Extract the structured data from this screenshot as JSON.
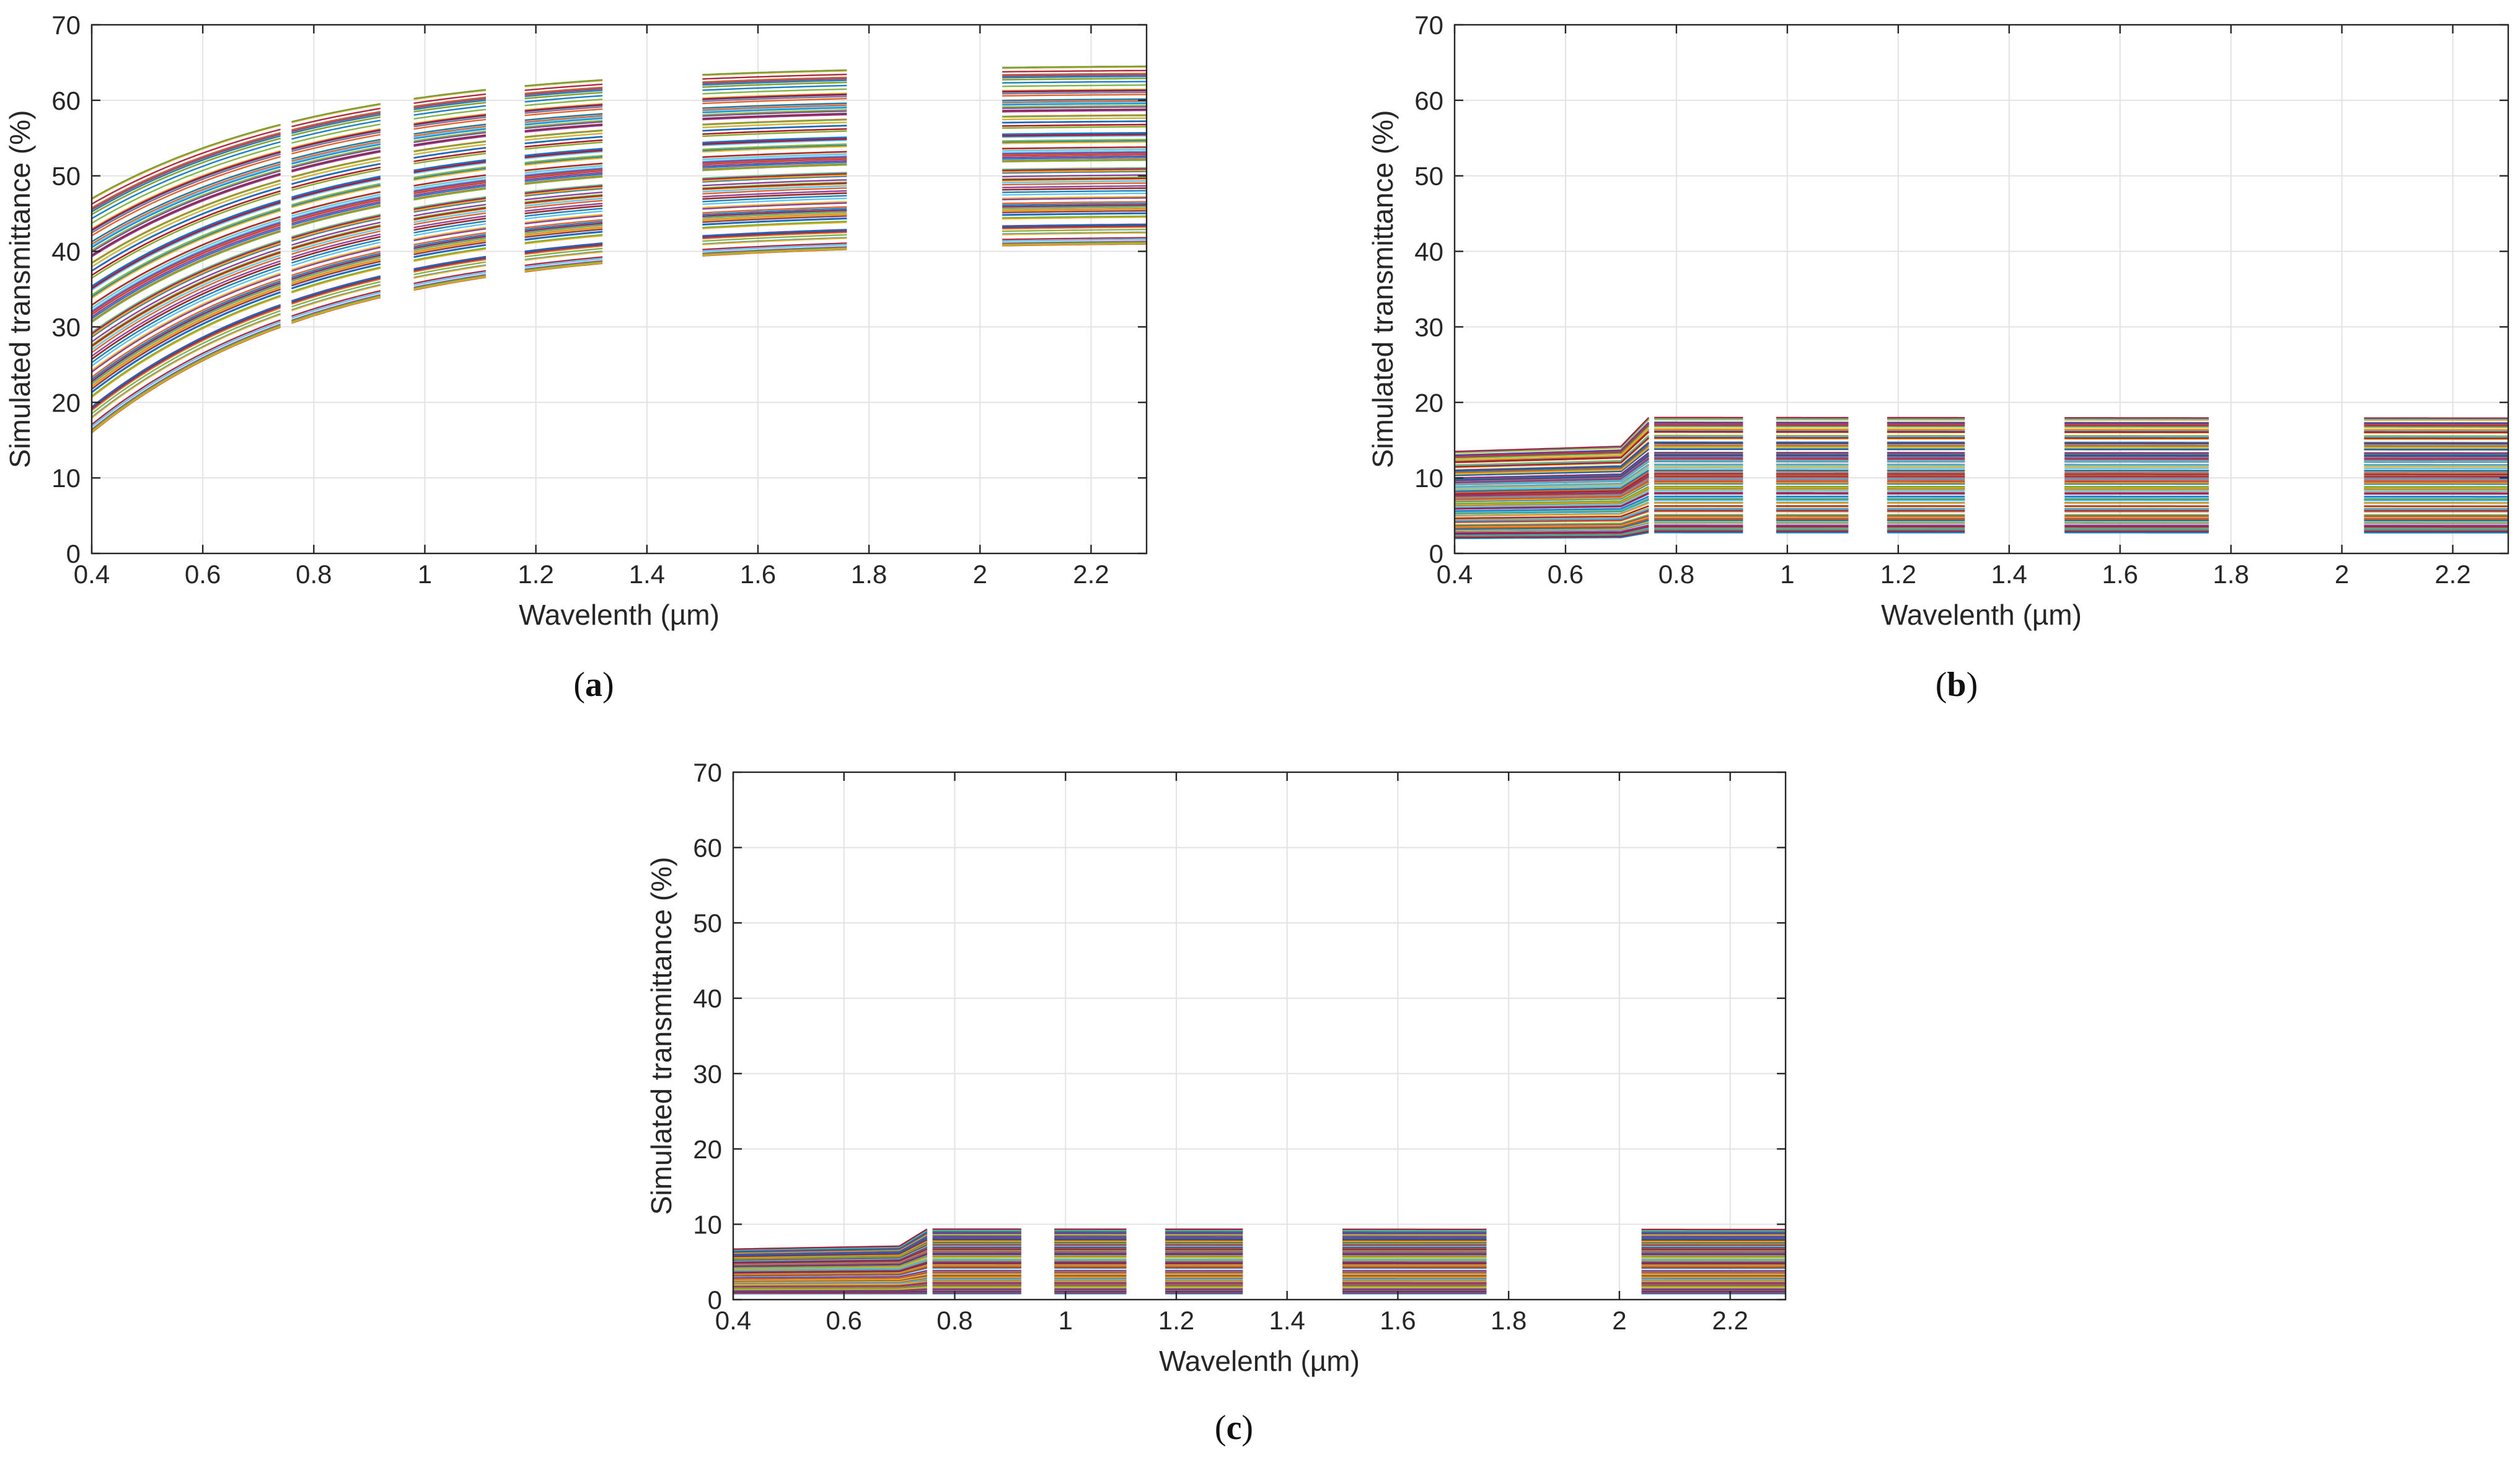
{
  "chart_data": [
    {
      "type": "line",
      "panel_label": "(a)",
      "panel_letter": "a",
      "xlabel": "Wavelenth (µm)",
      "ylabel": "Simulated transmittance (%)",
      "xlim": [
        0.4,
        2.3
      ],
      "ylim": [
        0,
        70
      ],
      "xticks": [
        "0.4",
        "0.6",
        "0.8",
        "1",
        "1.2",
        "1.4",
        "1.6",
        "1.8",
        "2",
        "2.2"
      ],
      "yticks": [
        "0",
        "10",
        "20",
        "30",
        "40",
        "50",
        "60",
        "70"
      ],
      "grid": true,
      "band_segments_um": [
        [
          0.4,
          0.74
        ],
        [
          0.76,
          0.92
        ],
        [
          0.98,
          1.11
        ],
        [
          1.18,
          1.32
        ],
        [
          1.5,
          1.76
        ],
        [
          2.04,
          2.3
        ]
      ],
      "series_summary": {
        "count": 110,
        "start_min": 16,
        "start_max": 47,
        "end_min": 41,
        "end_max": 64.5
      }
    },
    {
      "type": "line",
      "panel_label": "(b)",
      "panel_letter": "b",
      "xlabel": "Wavelenth (µm)",
      "ylabel": "Simulated transmittance (%)",
      "xlim": [
        0.4,
        2.3
      ],
      "ylim": [
        0,
        70
      ],
      "xticks": [
        "0.4",
        "0.6",
        "0.8",
        "1",
        "1.2",
        "1.4",
        "1.6",
        "1.8",
        "2",
        "2.2"
      ],
      "yticks": [
        "0",
        "10",
        "20",
        "30",
        "40",
        "50",
        "60",
        "70"
      ],
      "grid": true,
      "band_segments_um": [
        [
          0.4,
          0.75
        ],
        [
          0.76,
          0.92
        ],
        [
          0.98,
          1.11
        ],
        [
          1.18,
          1.32
        ],
        [
          1.5,
          1.76
        ],
        [
          2.04,
          2.3
        ]
      ],
      "series_summary": {
        "count": 140,
        "start_min": 1.8,
        "start_max": 13.5,
        "end_min": 2.5,
        "end_max": 18
      }
    },
    {
      "type": "line",
      "panel_label": "(c)",
      "panel_letter": "c",
      "xlabel": "Wavelenth (µm)",
      "ylabel": "Simulated transmittance (%)",
      "xlim": [
        0.4,
        2.3
      ],
      "ylim": [
        0,
        70
      ],
      "xticks": [
        "0.4",
        "0.6",
        "0.8",
        "1",
        "1.2",
        "1.4",
        "1.6",
        "1.8",
        "2",
        "2.2"
      ],
      "yticks": [
        "0",
        "10",
        "20",
        "30",
        "40",
        "50",
        "60",
        "70"
      ],
      "grid": true,
      "band_segments_um": [
        [
          0.4,
          0.75
        ],
        [
          0.76,
          0.92
        ],
        [
          0.98,
          1.11
        ],
        [
          1.18,
          1.32
        ],
        [
          1.5,
          1.76
        ],
        [
          2.04,
          2.3
        ]
      ],
      "series_summary": {
        "count": 140,
        "start_min": 0.8,
        "start_max": 6.8,
        "end_min": 0.8,
        "end_max": 9.5
      }
    }
  ],
  "palette": [
    "#0072BD",
    "#D95319",
    "#EDB120",
    "#7E2F8E",
    "#77AC30",
    "#4DBEEE",
    "#A2142F"
  ]
}
